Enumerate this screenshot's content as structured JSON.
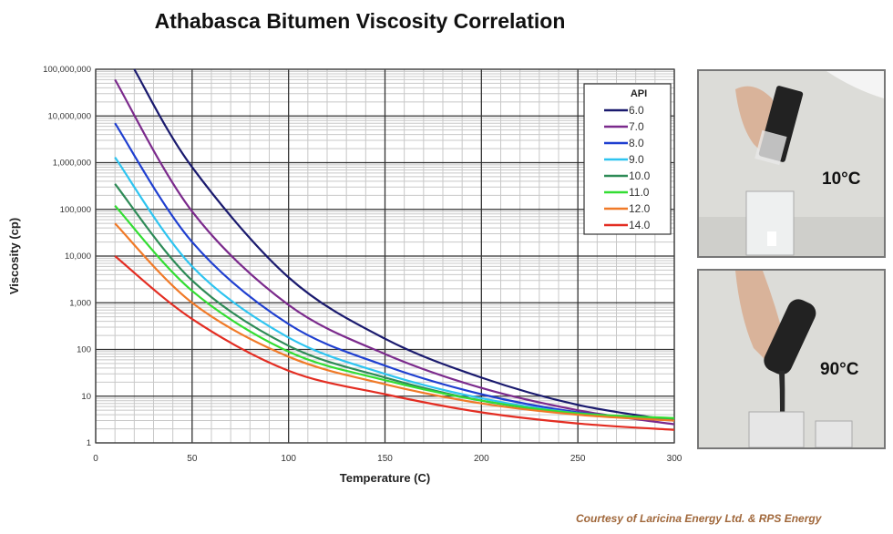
{
  "chart_data": {
    "type": "line",
    "title": "Athabasca Bitumen Viscosity Correlation",
    "xlabel": "Temperature (C)",
    "ylabel": "Viscosity (cp)",
    "xlim": [
      0,
      300
    ],
    "ylim": [
      1,
      100000000
    ],
    "yscale": "log",
    "grid": true,
    "xticks": [
      0,
      50,
      100,
      150,
      200,
      250,
      300
    ],
    "yticks": [
      1,
      10,
      100,
      1000,
      10000,
      100000,
      1000000,
      10000000,
      100000000
    ],
    "ytick_labels": [
      "1",
      "10",
      "100",
      "1,000",
      "10,000",
      "100,000",
      "1,000,000",
      "10,000,000",
      "100,000,000"
    ],
    "legend": {
      "title": "API",
      "placement": "top-right"
    },
    "series": [
      {
        "name": "6.0",
        "color": "#1a1a6e",
        "x": [
          20,
          50,
          100,
          150,
          200,
          250,
          300
        ],
        "y": [
          100000000,
          800000,
          3500,
          170,
          25,
          6.5,
          3
        ]
      },
      {
        "name": "7.0",
        "color": "#7b2a8c",
        "x": [
          10,
          50,
          100,
          150,
          200,
          250,
          300
        ],
        "y": [
          60000000,
          90000,
          900,
          80,
          15,
          5,
          2.5
        ]
      },
      {
        "name": "8.0",
        "color": "#1f3fd0",
        "x": [
          10,
          50,
          100,
          150,
          200,
          250,
          300
        ],
        "y": [
          7000000,
          20000,
          350,
          45,
          11,
          4.5,
          3
        ]
      },
      {
        "name": "9.0",
        "color": "#2ec4f0",
        "x": [
          10,
          50,
          100,
          150,
          200,
          250,
          300
        ],
        "y": [
          1300000,
          6000,
          180,
          30,
          9,
          4.3,
          3.2
        ]
      },
      {
        "name": "10.0",
        "color": "#2e8b57",
        "x": [
          10,
          50,
          100,
          150,
          200,
          250,
          300
        ],
        "y": [
          350000,
          3000,
          120,
          25,
          8,
          4.2,
          3.2
        ]
      },
      {
        "name": "11.0",
        "color": "#33dd33",
        "x": [
          10,
          50,
          100,
          150,
          200,
          250,
          300
        ],
        "y": [
          120000,
          1800,
          90,
          22,
          8,
          4.3,
          3.4
        ]
      },
      {
        "name": "12.0",
        "color": "#f07a28",
        "x": [
          10,
          50,
          100,
          150,
          200,
          250,
          300
        ],
        "y": [
          50000,
          1000,
          70,
          18,
          7,
          4,
          3
        ]
      },
      {
        "name": "14.0",
        "color": "#e32d22",
        "x": [
          10,
          50,
          100,
          150,
          200,
          250,
          300
        ],
        "y": [
          10000,
          450,
          35,
          11,
          4.5,
          2.6,
          1.9
        ]
      }
    ]
  },
  "photos": [
    {
      "label": "10°C"
    },
    {
      "label": "90°C"
    }
  ],
  "credit": "Courtesy of Laricina Energy Ltd. & RPS Energy"
}
